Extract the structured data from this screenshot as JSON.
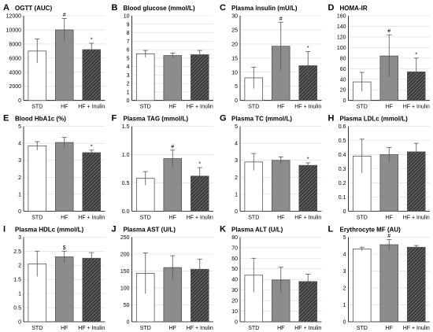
{
  "figure": {
    "colors": {
      "std_fill": "#ffffff",
      "hf_fill": "#8c8c8c",
      "inulin_fill": "#3a3a3a",
      "bar_edge": "#555555",
      "grid": "#d9d9d9"
    },
    "patterns": {
      "std": "solid-white",
      "hf": "solid-grey",
      "hf_inulin": "diagonal-hatch"
    }
  },
  "chart_data": [
    {
      "type": "bar",
      "letter": "A",
      "title": "OGTT (AUC)",
      "categories": [
        "STD",
        "HF",
        "HF + Inulin"
      ],
      "values": [
        7000,
        10000,
        7200
      ],
      "errors": [
        1700,
        1600,
        900
      ],
      "marks": [
        "",
        "#",
        "*"
      ],
      "ylim": [
        0,
        12000
      ],
      "yticks": [
        0,
        2000,
        4000,
        6000,
        8000,
        10000,
        12000
      ],
      "grid": true
    },
    {
      "type": "bar",
      "letter": "B",
      "title": "Blood glucose (mmol/L)",
      "categories": [
        "STD",
        "HF",
        "HF + Inulin"
      ],
      "values": [
        5.5,
        5.3,
        5.4
      ],
      "errors": [
        0.4,
        0.3,
        0.5
      ],
      "marks": [
        "",
        "",
        ""
      ],
      "ylim": [
        0,
        10
      ],
      "yticks": [
        0,
        1,
        2,
        3,
        4,
        5,
        6,
        7,
        8,
        9,
        10
      ],
      "grid": true
    },
    {
      "type": "bar",
      "letter": "C",
      "title": "Plasma insulin (mU/L)",
      "categories": [
        "STD",
        "HF",
        "HF + Inulin"
      ],
      "values": [
        8,
        19.2,
        12.3
      ],
      "errors": [
        3.8,
        8.5,
        5
      ],
      "marks": [
        "",
        "#",
        "*"
      ],
      "ylim": [
        0,
        30
      ],
      "yticks": [
        0,
        5,
        10,
        15,
        20,
        25,
        30
      ],
      "grid": true
    },
    {
      "type": "bar",
      "letter": "D",
      "title": "HOMA-IR",
      "categories": [
        "STD",
        "HF",
        "HF + Inulin"
      ],
      "values": [
        35,
        84,
        54
      ],
      "errors": [
        18,
        40,
        26
      ],
      "marks": [
        "",
        "#",
        "*"
      ],
      "ylim": [
        0,
        160
      ],
      "yticks": [
        0,
        20,
        40,
        60,
        80,
        100,
        120,
        140,
        160
      ],
      "grid": true
    },
    {
      "type": "bar",
      "letter": "E",
      "title": "Blood HbA1c (%)",
      "categories": [
        "STD",
        "HF",
        "HF + Inulin"
      ],
      "values": [
        3.85,
        4.05,
        3.45
      ],
      "errors": [
        0.25,
        0.3,
        0.15
      ],
      "marks": [
        "",
        "",
        "*"
      ],
      "ylim": [
        0,
        5
      ],
      "yticks": [
        0,
        1,
        2,
        3,
        4,
        5
      ],
      "grid": true
    },
    {
      "type": "bar",
      "letter": "F",
      "title": "Plasma TAG (mmol/L)",
      "categories": [
        "STD",
        "HF",
        "HF + Inulin"
      ],
      "values": [
        0.58,
        0.93,
        0.62
      ],
      "errors": [
        0.12,
        0.15,
        0.15
      ],
      "marks": [
        "",
        "#",
        "*"
      ],
      "ylim": [
        0,
        1.5
      ],
      "yticks": [
        0,
        0.5,
        1.0,
        1.5
      ],
      "ytick_labels": [
        "0.0",
        "0.5",
        "1.0",
        "1.5"
      ],
      "grid": true
    },
    {
      "type": "bar",
      "letter": "G",
      "title": "Plasma TC (mmol/L)",
      "categories": [
        "STD",
        "HF",
        "HF + Inulin"
      ],
      "values": [
        2.9,
        3.0,
        2.7
      ],
      "errors": [
        0.5,
        0.2,
        0.15
      ],
      "marks": [
        "",
        "",
        "*"
      ],
      "ylim": [
        0,
        5
      ],
      "yticks": [
        0,
        1,
        2,
        3,
        4,
        5
      ],
      "grid": true
    },
    {
      "type": "bar",
      "letter": "H",
      "title": "Plasma LDLc (mmol/L)",
      "categories": [
        "STD",
        "HF",
        "HF + Inulin"
      ],
      "values": [
        0.39,
        0.4,
        0.42
      ],
      "errors": [
        0.12,
        0.05,
        0.06
      ],
      "marks": [
        "",
        "",
        ""
      ],
      "ylim": [
        0,
        0.6
      ],
      "yticks": [
        0,
        0.1,
        0.2,
        0.3,
        0.4,
        0.5,
        0.6
      ],
      "ytick_labels": [
        "0",
        "0.1",
        "0.2",
        "0.3",
        "0.4",
        "0.5",
        "0.6"
      ],
      "grid": true
    },
    {
      "type": "bar",
      "letter": "I",
      "title": "Plasma HDLc (mmol/L)",
      "categories": [
        "STD",
        "HF",
        "HF + Inulin"
      ],
      "values": [
        2.05,
        2.3,
        2.25
      ],
      "errors": [
        0.45,
        0.2,
        0.2
      ],
      "marks": [
        "",
        "$",
        ""
      ],
      "ylim": [
        0,
        3
      ],
      "yticks": [
        0,
        0.5,
        1,
        1.5,
        2,
        2.5,
        3
      ],
      "ytick_labels": [
        "0",
        "0.5",
        "1",
        "1.5",
        "2",
        "2.5",
        "3"
      ],
      "grid": true
    },
    {
      "type": "bar",
      "letter": "J",
      "title": "Plasma AST (U/L)",
      "categories": [
        "STD",
        "HF",
        "HF + Inulin"
      ],
      "values": [
        143,
        160,
        155
      ],
      "errors": [
        60,
        35,
        30
      ],
      "marks": [
        "",
        "",
        ""
      ],
      "ylim": [
        0,
        250
      ],
      "yticks": [
        0,
        50,
        100,
        150,
        200,
        250
      ],
      "grid": true
    },
    {
      "type": "bar",
      "letter": "K",
      "title": "Plasma ALT (U/L)",
      "categories": [
        "STD",
        "HF",
        "HF + Inulin"
      ],
      "values": [
        44,
        39.5,
        38
      ],
      "errors": [
        16,
        12,
        7
      ],
      "marks": [
        "",
        "",
        ""
      ],
      "ylim": [
        0,
        80
      ],
      "yticks": [
        0,
        10,
        20,
        30,
        40,
        50,
        60,
        70,
        80
      ],
      "grid": true
    },
    {
      "type": "bar",
      "letter": "L",
      "title": "Erythrocyte MF (AU)",
      "categories": [
        "STD",
        "HF",
        "HF + Inulin"
      ],
      "values": [
        4.3,
        4.55,
        4.4
      ],
      "errors": [
        0.1,
        0.3,
        0.1
      ],
      "marks": [
        "",
        "#",
        ""
      ],
      "ylim": [
        0,
        5
      ],
      "yticks": [
        0,
        1,
        2,
        3,
        4,
        5
      ],
      "grid": true
    }
  ]
}
